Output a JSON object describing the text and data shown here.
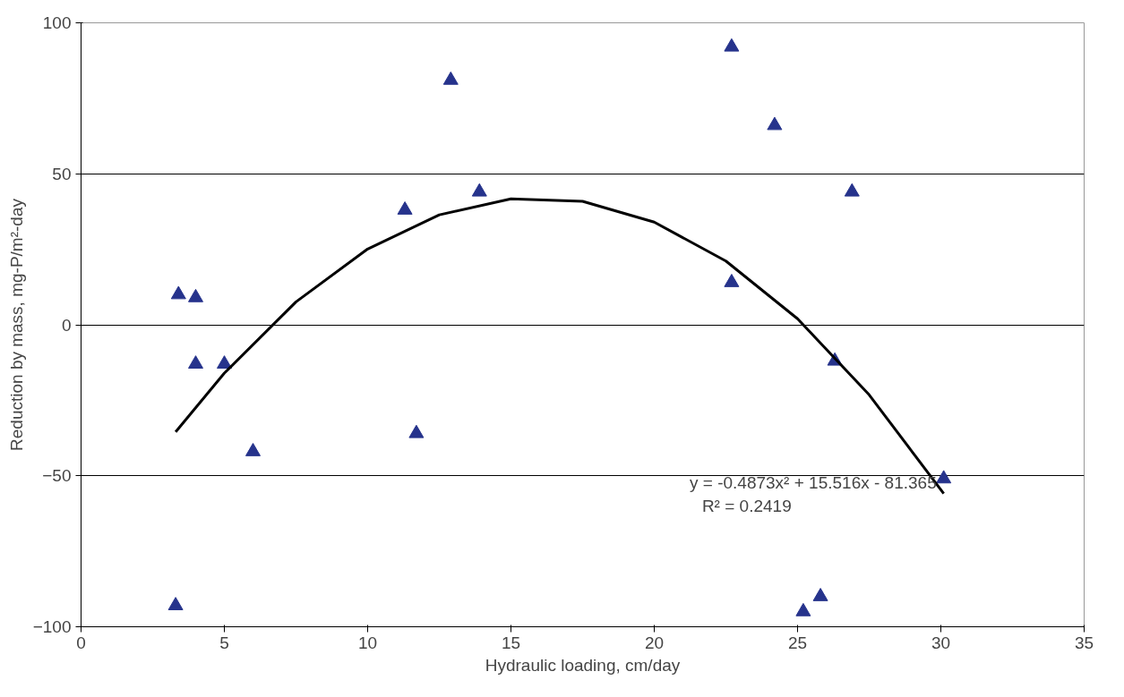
{
  "chart_data": {
    "type": "scatter",
    "xlabel": "Hydraulic loading, cm/day",
    "ylabel": "Reduction by mass, mg-P/m²-day",
    "xlim": [
      0,
      35
    ],
    "xticks": [
      0,
      5,
      10,
      15,
      20,
      25,
      30,
      35
    ],
    "ylim": [
      -100,
      100
    ],
    "yticks": [
      -100,
      -50,
      0,
      50,
      100
    ],
    "grid": "y",
    "series": [
      {
        "marker": "triangle",
        "color": "#26338c",
        "x": [
          3.4,
          4.0,
          4.0,
          5.0,
          6.0,
          11.3,
          11.7,
          12.9,
          13.9,
          22.7,
          22.7,
          24.2,
          26.9,
          26.3,
          30.1,
          3.3,
          25.2,
          25.8
        ],
        "values": [
          10,
          9,
          -13,
          -13,
          -42,
          38,
          -36,
          81,
          44,
          92,
          14,
          66,
          44,
          -12,
          -51,
          -93,
          -95,
          -90
        ]
      },
      {
        "type": "line",
        "marker": "none",
        "line_style": "solid",
        "color": "#000000",
        "x": [
          3.3,
          5,
          7.5,
          10,
          12.5,
          15,
          17.5,
          20,
          22.5,
          25,
          27.5,
          30.1
        ],
        "values": [
          -35.5,
          -16.0,
          7.6,
          25.1,
          36.4,
          41.7,
          40.9,
          34.0,
          21.1,
          2.0,
          -23.2,
          -55.9
        ]
      }
    ],
    "annotations": [
      {
        "text": "y = -0.4873x² + 15.516x - 81.365",
        "x": 30.1,
        "y": -55.9
      },
      "R² = 0.2419"
    ]
  }
}
